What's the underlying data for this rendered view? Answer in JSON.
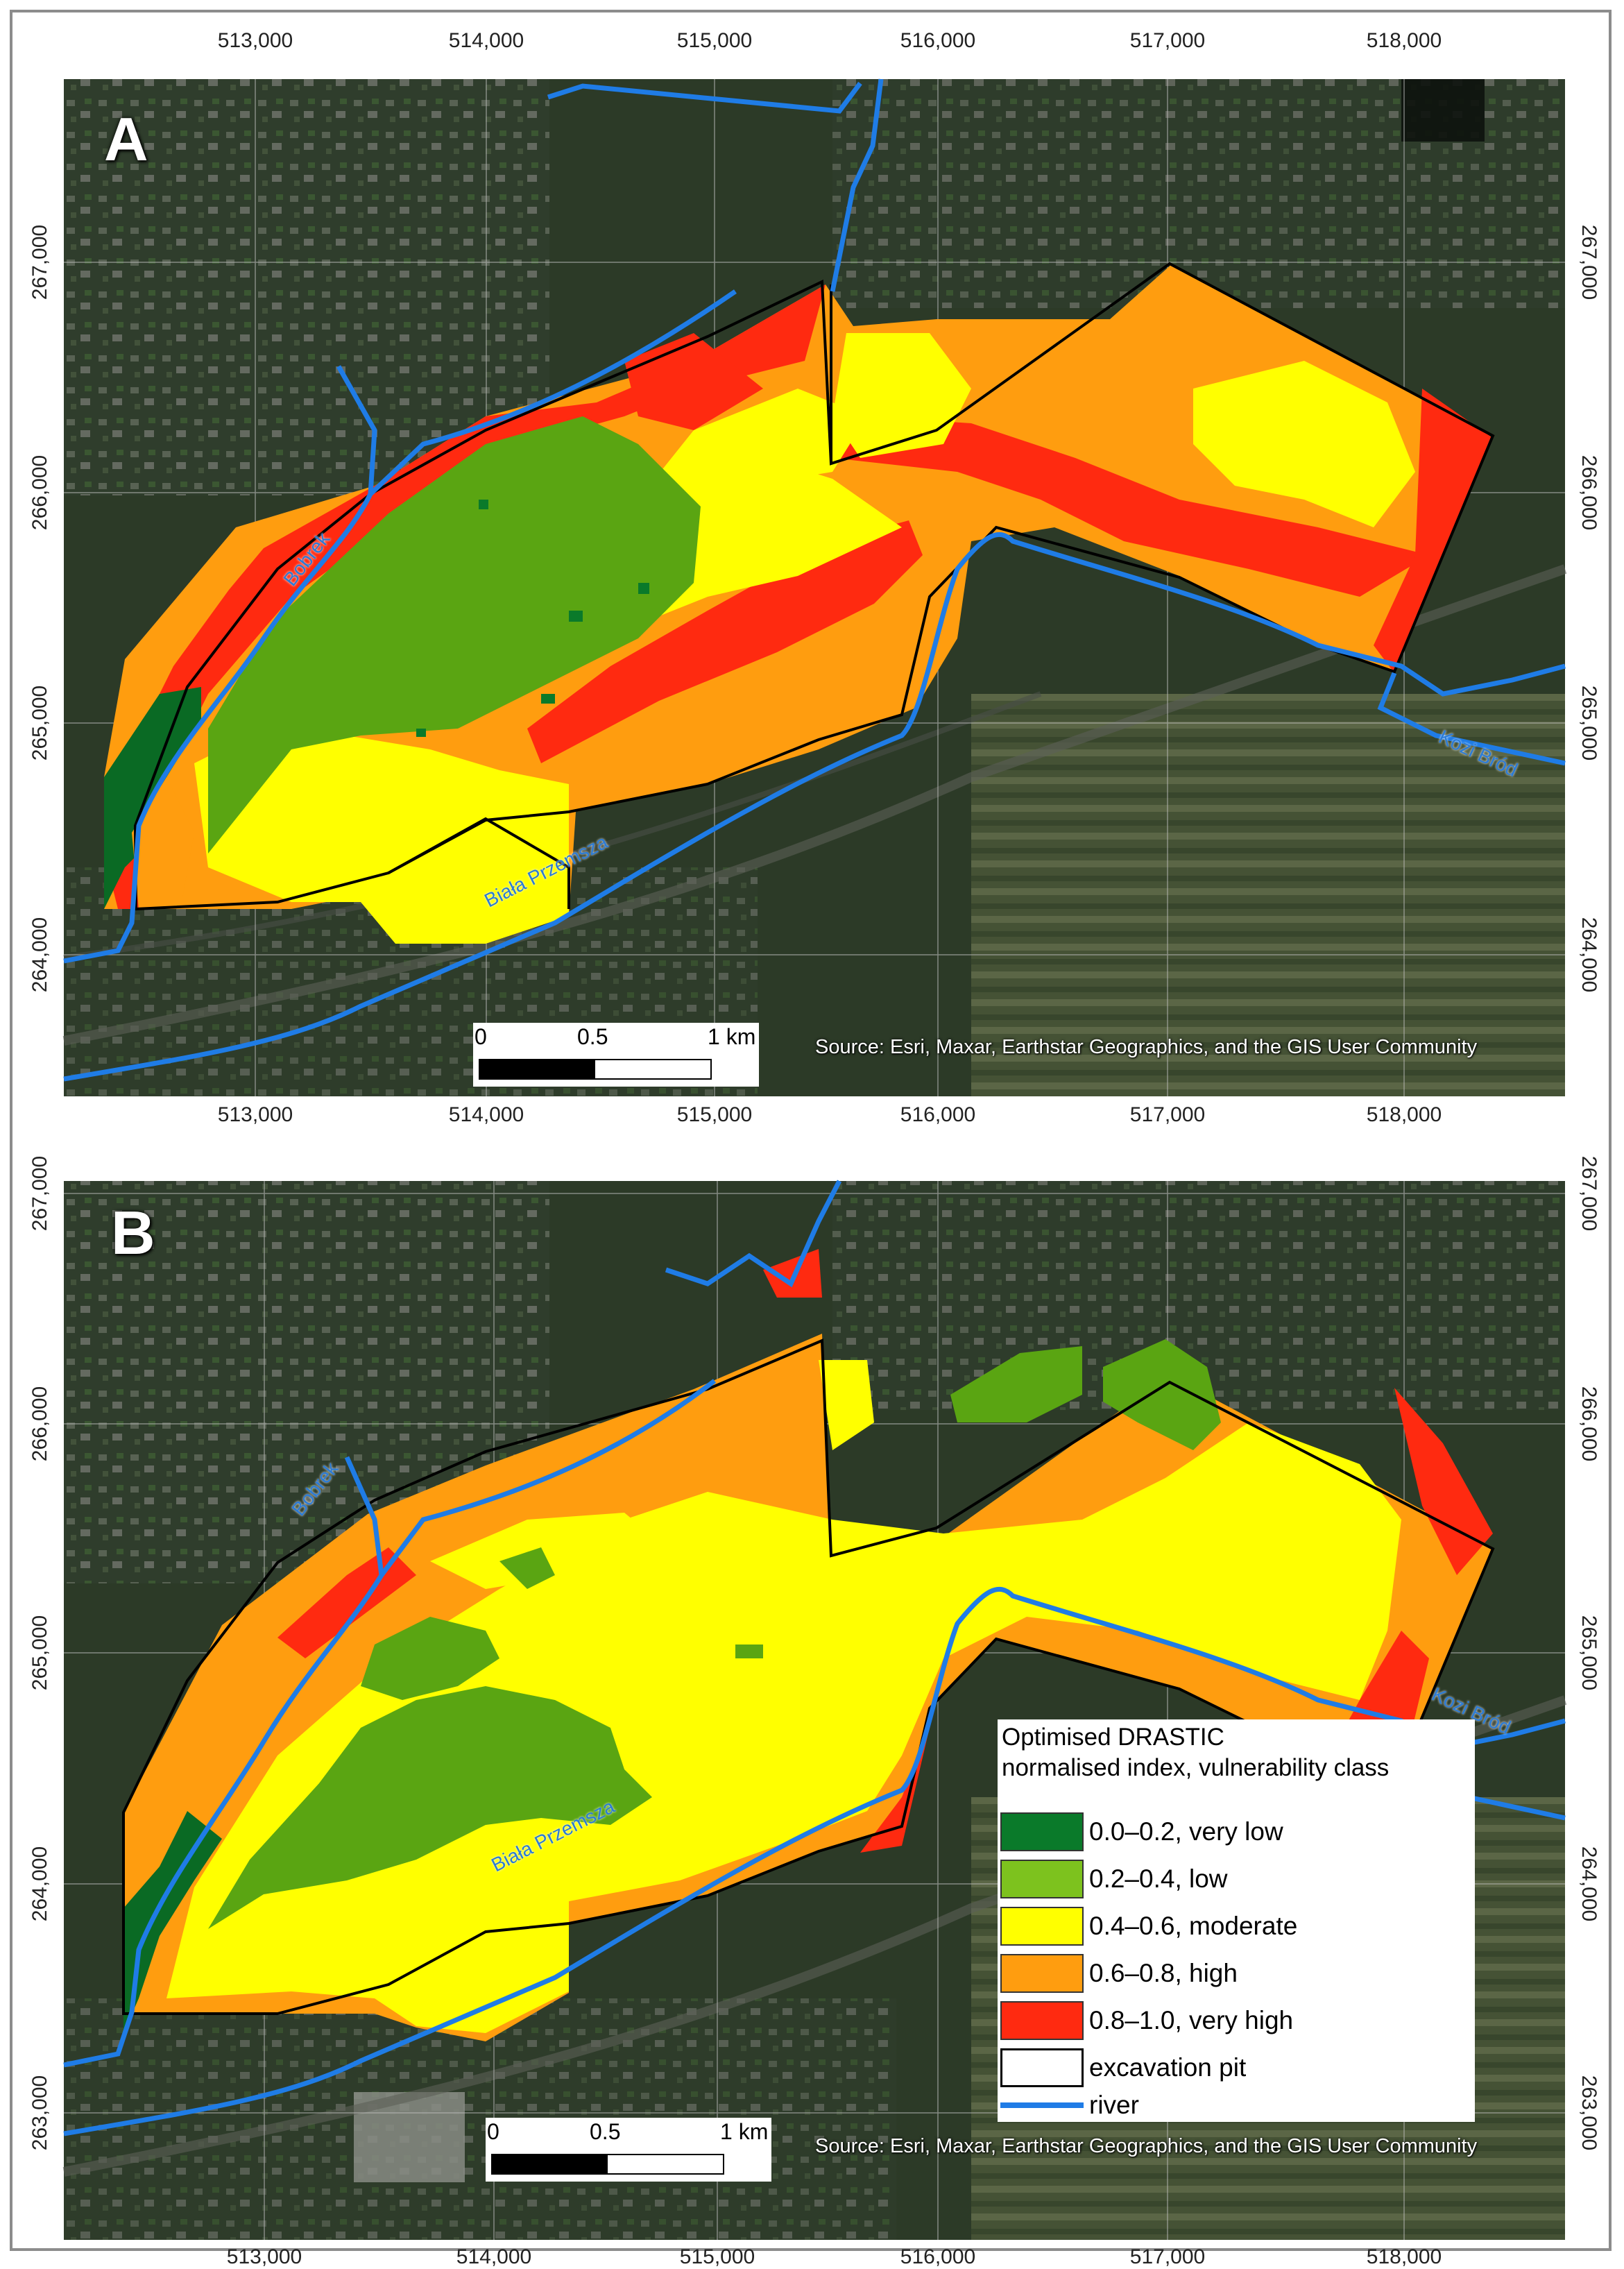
{
  "panels": [
    {
      "letter": "A",
      "x_ticks": [
        "513,000",
        "514,000",
        "515,000",
        "516,000",
        "517,000",
        "518,000"
      ],
      "y_ticks": [
        "267,000",
        "266,000",
        "265,000",
        "264,000"
      ],
      "scalebar": {
        "labels": [
          "0",
          "0.5",
          "1 km"
        ]
      },
      "source": "Source: Esri, Maxar, Earthstar Geographics, and the GIS User Community",
      "river_labels": [
        "Bobrek",
        "Biała Przemsza",
        "Kozi Bród"
      ]
    },
    {
      "letter": "B",
      "x_ticks": [
        "513,000",
        "514,000",
        "515,000",
        "516,000",
        "517,000",
        "518,000"
      ],
      "y_ticks": [
        "267,000",
        "266,000",
        "265,000",
        "264,000",
        "263,000"
      ],
      "scalebar": {
        "labels": [
          "0",
          "0.5",
          "1 km"
        ]
      },
      "source": "Source: Esri, Maxar, Earthstar Geographics, and the GIS User Community",
      "river_labels": [
        "Bobrek",
        "Biała Przemsza",
        "Kozi Bród"
      ]
    }
  ],
  "legend": {
    "title_line1": "Optimised DRASTIC",
    "title_line2": "normalised index, vulnerability class",
    "items": [
      {
        "label": "0.0–0.2, very low",
        "color": "#0a7a2a"
      },
      {
        "label": "0.2–0.4, low",
        "color": "#7dc21e"
      },
      {
        "label": "0.4–0.6, moderate",
        "color": "#ffff00"
      },
      {
        "label": "0.6–0.8, high",
        "color": "#ff9d0f"
      },
      {
        "label": "0.8–1.0, very high",
        "color": "#ff2a10"
      }
    ],
    "pit_label": "excavation pit",
    "river_label": "river",
    "river_color": "#1f7ce6"
  }
}
